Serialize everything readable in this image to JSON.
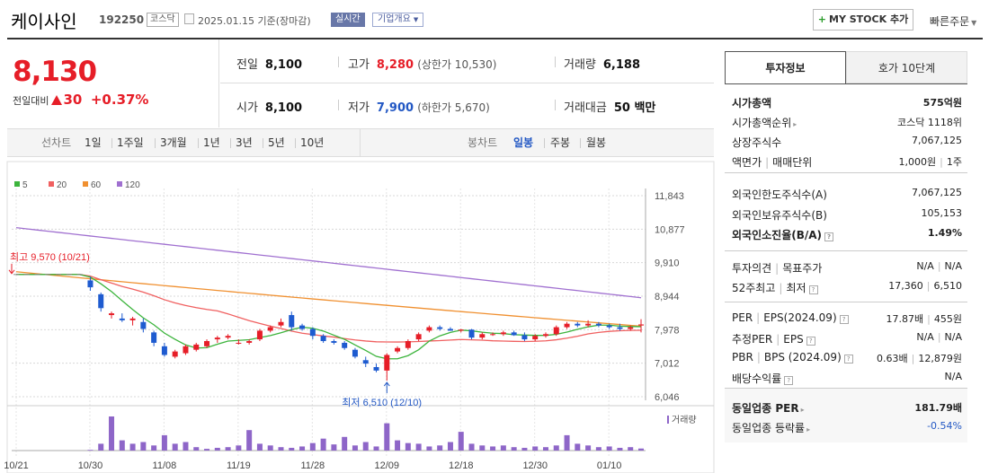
{
  "header": {
    "company_name": "케이사인",
    "stock_code": "192250",
    "market_badge": "코스닥",
    "as_of": "2025.01.15  기준(장마감)",
    "realtime_button": "실시간",
    "company_overview_button": "기업개요",
    "mystock_button": "MY STOCK 추가",
    "quick_order_button": "빠른주문"
  },
  "price": {
    "current": "8,130",
    "change_label": "전일대비",
    "change_amount": "30",
    "change_percent": "+0.37%",
    "direction": "up"
  },
  "summary": {
    "prev_close_label": "전일",
    "prev_close": "8,100",
    "high_label": "고가",
    "high": "8,280",
    "upper_limit": "(상한가 10,530)",
    "volume_label": "거래량",
    "volume": "6,188",
    "open_label": "시가",
    "open": "8,100",
    "low_label": "저가",
    "low": "7,900",
    "lower_limit": "(하한가 5,670)",
    "trade_value_label": "거래대금",
    "trade_value": "50 백만"
  },
  "period_bar": {
    "line_label": "선차트",
    "line_periods": [
      "1일",
      "1주일",
      "3개월",
      "1년",
      "3년",
      "5년",
      "10년"
    ],
    "candle_label": "봉차트",
    "candle_periods": [
      "일봉",
      "주봉",
      "월봉"
    ],
    "active_candle": "일봉"
  },
  "chart_data": {
    "type": "candlestick",
    "legend": [
      {
        "name": "5",
        "color": "#3cb43c"
      },
      {
        "name": "20",
        "color": "#f06060"
      },
      {
        "name": "60",
        "color": "#f09030"
      },
      {
        "name": "120",
        "color": "#a070d0"
      }
    ],
    "y_ticks": [
      "11,843",
      "10,877",
      "9,910",
      "8,944",
      "7,978",
      "7,012",
      "6,046"
    ],
    "ylim": [
      6046,
      11843
    ],
    "x_ticks": [
      "10/21",
      "10/30",
      "11/08",
      "11/19",
      "11/28",
      "12/09",
      "12/18",
      "12/30",
      "01/10"
    ],
    "high_annotation": "최고 9,570 (10/21)",
    "low_annotation": "최저 6,510 (12/10)",
    "volume_label": "거래량",
    "up_color": "#e61e28",
    "down_color": "#1e5bd0",
    "candles": [
      [
        9570,
        9570,
        9570,
        9570
      ],
      [
        9570,
        9570,
        9570,
        9570
      ],
      [
        9570,
        9570,
        9570,
        9570
      ],
      [
        9570,
        9570,
        9570,
        9570
      ],
      [
        9570,
        9570,
        9570,
        9570
      ],
      [
        9570,
        9570,
        9570,
        9570
      ],
      [
        9570,
        9570,
        9570,
        9570
      ],
      [
        9400,
        9500,
        9100,
        9200
      ],
      [
        9000,
        9050,
        8500,
        8600
      ],
      [
        8400,
        8500,
        8300,
        8450
      ],
      [
        8300,
        8450,
        8200,
        8250
      ],
      [
        8250,
        8350,
        8100,
        8300
      ],
      [
        8200,
        8300,
        7900,
        8000
      ],
      [
        7900,
        7950,
        7500,
        7600
      ],
      [
        7500,
        7600,
        7200,
        7250
      ],
      [
        7200,
        7400,
        7150,
        7350
      ],
      [
        7300,
        7550,
        7250,
        7500
      ],
      [
        7400,
        7600,
        7350,
        7550
      ],
      [
        7500,
        7700,
        7450,
        7650
      ],
      [
        7700,
        7800,
        7600,
        7750
      ],
      [
        7750,
        7850,
        7700,
        7800
      ],
      [
        7600,
        7700,
        7550,
        7600
      ],
      [
        7600,
        7700,
        7550,
        7650
      ],
      [
        7700,
        8000,
        7650,
        7950
      ],
      [
        7950,
        8100,
        7900,
        8050
      ],
      [
        8100,
        8300,
        8050,
        8200
      ],
      [
        8400,
        8500,
        7950,
        8050
      ],
      [
        8100,
        8150,
        7950,
        8000
      ],
      [
        8000,
        8050,
        7700,
        7800
      ],
      [
        7800,
        7850,
        7600,
        7650
      ],
      [
        7650,
        7700,
        7550,
        7600
      ],
      [
        7600,
        7650,
        7400,
        7450
      ],
      [
        7400,
        7450,
        7150,
        7200
      ],
      [
        7100,
        7200,
        6900,
        7000
      ],
      [
        6900,
        7000,
        6750,
        6800
      ],
      [
        6800,
        7300,
        6510,
        7250
      ],
      [
        7350,
        7500,
        7300,
        7450
      ],
      [
        7450,
        7700,
        7400,
        7650
      ],
      [
        7700,
        7900,
        7650,
        7850
      ],
      [
        7950,
        8100,
        7900,
        8050
      ],
      [
        8050,
        8100,
        7950,
        8000
      ],
      [
        8000,
        8050,
        7950,
        7950
      ],
      [
        7950,
        8000,
        7900,
        7980
      ],
      [
        7980,
        8000,
        7700,
        7750
      ],
      [
        7750,
        7900,
        7700,
        7850
      ],
      [
        7850,
        7900,
        7800,
        7850
      ],
      [
        7850,
        7950,
        7800,
        7900
      ],
      [
        7900,
        7950,
        7800,
        7820
      ],
      [
        7820,
        7900,
        7650,
        7700
      ],
      [
        7700,
        7850,
        7650,
        7800
      ],
      [
        7800,
        7900,
        7750,
        7850
      ],
      [
        7850,
        8100,
        7800,
        8050
      ],
      [
        8050,
        8200,
        8000,
        8150
      ],
      [
        8150,
        8200,
        8050,
        8100
      ],
      [
        8100,
        8250,
        8050,
        8150
      ],
      [
        8150,
        8200,
        8050,
        8100
      ],
      [
        8100,
        8150,
        8000,
        8050
      ],
      [
        8050,
        8150,
        7950,
        8000
      ],
      [
        8000,
        8100,
        7950,
        8050
      ],
      [
        8100,
        8280,
        7900,
        8130
      ]
    ],
    "volumes": [
      0,
      0,
      0,
      0,
      0,
      0,
      0,
      2,
      20,
      100,
      30,
      20,
      25,
      15,
      45,
      20,
      25,
      10,
      5,
      8,
      10,
      15,
      60,
      20,
      15,
      10,
      8,
      12,
      22,
      35,
      18,
      40,
      15,
      25,
      12,
      80,
      30,
      22,
      20,
      12,
      15,
      25,
      55,
      20,
      15,
      12,
      15,
      10,
      8,
      12,
      10,
      15,
      45,
      20,
      15,
      10,
      12,
      8,
      10,
      6
    ]
  },
  "info_panel": {
    "tab_invest": "투자정보",
    "tab_orderbook": "호가 10단계",
    "market_cap_label": "시가총액",
    "market_cap": "575억원",
    "market_cap_rank_label": "시가총액순위",
    "market_cap_rank": "코스닥 1118위",
    "listed_shares_label": "상장주식수",
    "listed_shares": "7,067,125",
    "par_value_label": "액면가",
    "trade_unit_label": "매매단위",
    "par_value": "1,000원",
    "trade_unit": "1주",
    "foreign_limit_label": "외국인한도주식수(A)",
    "foreign_limit": "7,067,125",
    "foreign_hold_label": "외국인보유주식수(B)",
    "foreign_hold": "105,153",
    "foreign_ratio_label": "외국인소진율(B/A)",
    "foreign_ratio": "1.49%",
    "opinion_label": "투자의견",
    "target_label": "목표주가",
    "opinion": "N/A",
    "target": "N/A",
    "week52_high_label": "52주최고",
    "week52_low_label": "최저",
    "week52_high": "17,360",
    "week52_low": "6,510",
    "per_label": "PER",
    "eps_label": "EPS(2024.09)",
    "per": "17.87배",
    "eps": "455원",
    "est_per_label": "추정PER",
    "est_eps_label": "EPS",
    "est_per": "N/A",
    "est_eps": "N/A",
    "pbr_label": "PBR",
    "bps_label": "BPS (2024.09)",
    "pbr": "0.63배",
    "bps": "12,879원",
    "dividend_label": "배당수익률",
    "dividend": "N/A",
    "sector_per_label": "동일업종 PER",
    "sector_per": "181.79배",
    "sector_change_label": "동일업종 등락률",
    "sector_change": "-0.54%"
  }
}
